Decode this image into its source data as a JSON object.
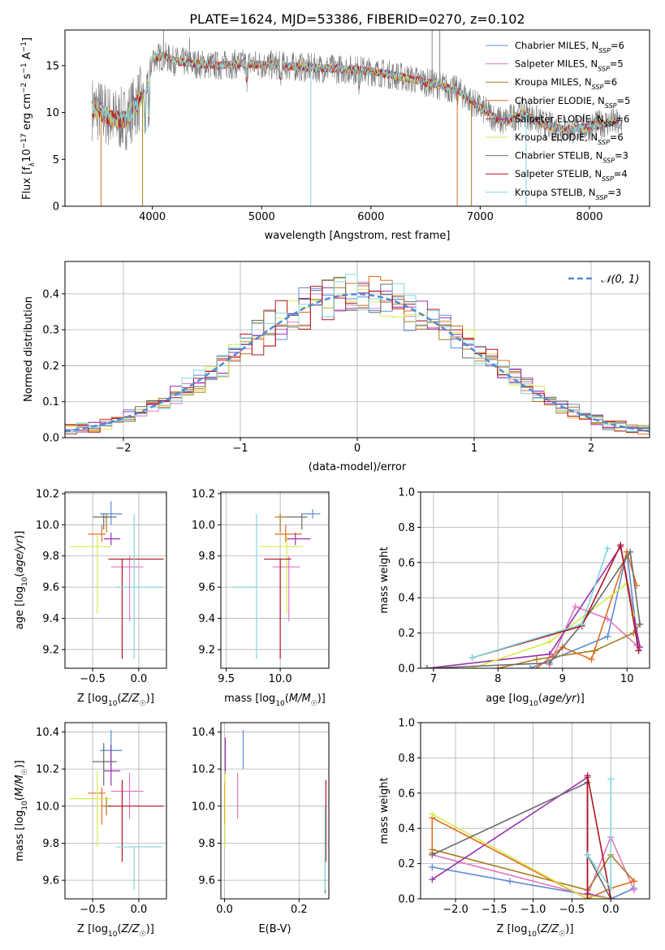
{
  "title": "PLATE=1624, MJD=53386, FIBERID=0270, z=0.102",
  "colors": {
    "Chabrier MILES": "#5b8bd9",
    "Salpeter MILES": "#e377c2",
    "Kroupa MILES": "#a87c1e",
    "Chabrier ELODIE": "#e36d1f",
    "Salpeter ELODIE": "#9b30b0",
    "Kroupa ELODIE": "#d7ea4a",
    "Chabrier STELIB": "#6b6b6b",
    "Salpeter STELIB": "#b0141f",
    "Kroupa STELIB": "#7fd7df",
    "normal": "#4f8ad6"
  },
  "chart_data": [
    {
      "id": "spectrum",
      "type": "line",
      "title": "PLATE=1624, MJD=53386, FIBERID=0270, z=0.102",
      "xlabel": "wavelength [Angstrom, rest frame]",
      "ylabel_parts": [
        "Flux [f",
        "λ",
        "10",
        "−17",
        " erg cm",
        "−2",
        " s",
        "−1",
        " A",
        "−1",
        "]"
      ],
      "xlim": [
        3200,
        8550
      ],
      "ylim": [
        0,
        18.8
      ],
      "xticks": [
        4000,
        5000,
        6000,
        7000,
        8000
      ],
      "yticks": [
        0,
        5,
        10,
        15
      ],
      "grid": false,
      "legend_position": "upper right",
      "legend": [
        {
          "label": "Chabrier MILES, N",
          "sub": "SSP",
          "suffix": "=6",
          "color": "#5b8bd9"
        },
        {
          "label": "Salpeter MILES, N",
          "sub": "SSP",
          "suffix": "=5",
          "color": "#e377c2"
        },
        {
          "label": "Kroupa MILES, N",
          "sub": "SSP",
          "suffix": "=6",
          "color": "#a87c1e"
        },
        {
          "label": "Chabrier ELODIE, N",
          "sub": "SSP",
          "suffix": "=5",
          "color": "#e36d1f"
        },
        {
          "label": "Salpeter ELODIE, N",
          "sub": "SSP",
          "suffix": "=6",
          "color": "#9b30b0"
        },
        {
          "label": "Kroupa ELODIE, N",
          "sub": "SSP",
          "suffix": "=6",
          "color": "#d7ea4a"
        },
        {
          "label": "Chabrier STELIB, N",
          "sub": "SSP",
          "suffix": "=3",
          "color": "#6b6b6b"
        },
        {
          "label": "Salpeter STELIB, N",
          "sub": "SSP",
          "suffix": "=4",
          "color": "#b0141f"
        },
        {
          "label": "Kroupa STELIB, N",
          "sub": "SSP",
          "suffix": "=3",
          "color": "#7fd7df"
        }
      ],
      "continuum": {
        "x": [
          3450,
          3550,
          3650,
          3750,
          3850,
          3950,
          4000,
          4100,
          4200,
          4400,
          4600,
          4800,
          5000,
          5200,
          5400,
          5600,
          5800,
          6000,
          6200,
          6400,
          6600,
          6800,
          7000,
          7200,
          7400,
          7600,
          7800,
          8000,
          8200,
          8300
        ],
        "y": [
          10.5,
          10.0,
          9.2,
          9.3,
          10.8,
          12.5,
          15.8,
          16.0,
          15.5,
          15.2,
          15.0,
          15.2,
          15.1,
          15.0,
          14.8,
          14.7,
          14.6,
          14.4,
          14.0,
          13.5,
          13.0,
          12.3,
          10.5,
          9.0,
          10.0,
          8.6,
          8.1,
          8.5,
          9.0,
          8.6
        ]
      },
      "spikes": [
        {
          "x": 3530,
          "y": 0
        },
        {
          "x": 3910,
          "y": 0
        },
        {
          "x": 5450,
          "y": 0
        },
        {
          "x": 6790,
          "y": 0
        },
        {
          "x": 6920,
          "y": 0
        },
        {
          "x": 7420,
          "y": 0
        },
        {
          "x": 6560,
          "y": 21
        },
        {
          "x": 6630,
          "y": 19
        },
        {
          "x": 4102,
          "y": 19
        },
        {
          "x": 4340,
          "y": 18
        }
      ]
    },
    {
      "id": "residuals",
      "type": "histogram",
      "xlabel": "(data-model)/error",
      "ylabel": "Normed distribution",
      "xlim": [
        -2.5,
        2.5
      ],
      "ylim": [
        0,
        0.49
      ],
      "xticks": [
        -2,
        -1,
        0,
        1,
        2
      ],
      "yticks": [
        0.0,
        0.1,
        0.2,
        0.3,
        0.4
      ],
      "grid": true,
      "legend_position": "upper right",
      "legend": [
        {
          "label": "𝒩(0, 1)",
          "color": "#4f8ad6"
        }
      ],
      "bin_width": 0.1
    },
    {
      "id": "age-z",
      "type": "errorbar",
      "xlabel": "Z [log₁₀(Z/Z☉)]",
      "ylabel": "age  [log₁₀(age/yr)]",
      "xlim": [
        -0.8,
        0.3
      ],
      "ylim": [
        9.08,
        10.21
      ],
      "xticks": [
        -0.5,
        0.0
      ],
      "yticks": [
        9.2,
        9.4,
        9.6,
        9.8,
        10.0,
        10.2
      ],
      "grid": true,
      "points": [
        {
          "model": "Chabrier MILES",
          "x": -0.3,
          "xerr": [
            0.12,
            0.12
          ],
          "y": 10.07,
          "yerr": [
            0.07,
            0.08
          ]
        },
        {
          "model": "Salpeter MILES",
          "x": -0.1,
          "xerr": [
            0.2,
            0.15
          ],
          "y": 9.73,
          "yerr": [
            0.35,
            0.07
          ]
        },
        {
          "model": "Kroupa MILES",
          "x": -0.35,
          "xerr": [
            0.05,
            0.05
          ],
          "y": 10.05,
          "yerr": [
            0.1,
            0.02
          ]
        },
        {
          "model": "Chabrier ELODIE",
          "x": -0.4,
          "xerr": [
            0.15,
            0.04
          ],
          "y": 9.94,
          "yerr": [
            0.05,
            0.06
          ]
        },
        {
          "model": "Salpeter ELODIE",
          "x": -0.3,
          "xerr": [
            0.08,
            0.1
          ],
          "y": 9.91,
          "yerr": [
            0.04,
            0.04
          ]
        },
        {
          "model": "Kroupa ELODIE",
          "x": -0.45,
          "xerr": [
            0.3,
            0.15
          ],
          "y": 9.86,
          "yerr": [
            0.43,
            0.07
          ]
        },
        {
          "model": "Chabrier STELIB",
          "x": -0.38,
          "xerr": [
            0.12,
            0.14
          ],
          "y": 10.05,
          "yerr": [
            0.08,
            0.02
          ]
        },
        {
          "model": "Salpeter STELIB",
          "x": -0.18,
          "xerr": [
            0.15,
            0.45
          ],
          "y": 9.78,
          "yerr": [
            0.64,
            0.0
          ]
        },
        {
          "model": "Kroupa STELIB",
          "x": -0.05,
          "xerr": [
            0.2,
            0.3
          ],
          "y": 9.6,
          "yerr": [
            0.46,
            0.47
          ]
        }
      ]
    },
    {
      "id": "age-mass",
      "type": "errorbar",
      "xlabel": "mass [log₁₀(M/M☉)]",
      "ylabel": "",
      "xlim": [
        9.45,
        10.45
      ],
      "ylim": [
        9.08,
        10.21
      ],
      "xticks": [
        9.5,
        10.0
      ],
      "yticks": [
        9.2,
        9.4,
        9.6,
        9.8,
        10.0,
        10.2
      ],
      "grid": true,
      "points": [
        {
          "model": "Chabrier MILES",
          "x": 10.3,
          "xerr": [
            0.1,
            0.07
          ],
          "y": 10.07,
          "yerr": [
            0.03,
            0.03
          ]
        },
        {
          "model": "Salpeter MILES",
          "x": 10.08,
          "xerr": [
            0.15,
            0.1
          ],
          "y": 9.73,
          "yerr": [
            0.35,
            0.07
          ]
        },
        {
          "model": "Kroupa MILES",
          "x": 10.0,
          "xerr": [
            0.05,
            0.05
          ],
          "y": 10.05,
          "yerr": [
            0.1,
            0.02
          ]
        },
        {
          "model": "Chabrier ELODIE",
          "x": 10.05,
          "xerr": [
            0.1,
            0.15
          ],
          "y": 9.94,
          "yerr": [
            0.05,
            0.06
          ]
        },
        {
          "model": "Salpeter ELODIE",
          "x": 10.14,
          "xerr": [
            0.08,
            0.14
          ],
          "y": 9.91,
          "yerr": [
            0.04,
            0.04
          ]
        },
        {
          "model": "Kroupa ELODIE",
          "x": 10.06,
          "xerr": [
            0.25,
            0.15
          ],
          "y": 9.86,
          "yerr": [
            0.43,
            0.07
          ]
        },
        {
          "model": "Chabrier STELIB",
          "x": 10.2,
          "xerr": [
            0.15,
            0.05
          ],
          "y": 10.05,
          "yerr": [
            0.08,
            0.02
          ]
        },
        {
          "model": "Salpeter STELIB",
          "x": 10.0,
          "xerr": [
            0.15,
            0.1
          ],
          "y": 9.78,
          "yerr": [
            0.64,
            0.0
          ]
        },
        {
          "model": "Kroupa STELIB",
          "x": 9.78,
          "xerr": [
            0.23,
            0.0
          ],
          "y": 9.6,
          "yerr": [
            0.46,
            0.47
          ]
        }
      ]
    },
    {
      "id": "massweight-age",
      "type": "line",
      "xlabel": "age  [log₁₀(age/yr)]",
      "ylabel": "mass weight",
      "xlim": [
        6.8,
        10.35
      ],
      "ylim": [
        0,
        1.0
      ],
      "xticks": [
        7,
        8,
        9,
        10
      ],
      "yticks": [
        0.0,
        0.2,
        0.4,
        0.6,
        0.8,
        1.0
      ],
      "grid": true,
      "series": [
        {
          "name": "Chabrier MILES",
          "x": [
            8.5,
            9.7,
            10.0,
            10.18
          ],
          "y": [
            0.0,
            0.18,
            0.66,
            0.1
          ]
        },
        {
          "name": "Salpeter MILES",
          "x": [
            8.8,
            9.2,
            9.7,
            10.15
          ],
          "y": [
            0.02,
            0.35,
            0.28,
            0.13
          ]
        },
        {
          "name": "Kroupa MILES",
          "x": [
            8.0,
            8.6,
            9.5,
            10.1,
            10.2
          ],
          "y": [
            0.0,
            0.05,
            0.1,
            0.2,
            0.25
          ]
        },
        {
          "name": "Chabrier ELODIE",
          "x": [
            8.6,
            9.0,
            9.45,
            10.0,
            10.15
          ],
          "y": [
            0.0,
            0.12,
            0.05,
            0.66,
            0.47
          ]
        },
        {
          "name": "Salpeter ELODIE",
          "x": [
            6.9,
            8.8,
            9.9,
            10.2
          ],
          "y": [
            0.0,
            0.08,
            0.69,
            0.12
          ]
        },
        {
          "name": "Kroupa ELODIE",
          "x": [
            7.6,
            8.8,
            10.0,
            10.1
          ],
          "y": [
            0.0,
            0.15,
            0.48,
            0.3
          ]
        },
        {
          "name": "Chabrier STELIB",
          "x": [
            6.9,
            8.8,
            9.3,
            10.05,
            10.2
          ],
          "y": [
            0.0,
            0.03,
            0.25,
            0.66,
            0.25
          ]
        },
        {
          "name": "Salpeter STELIB",
          "x": [
            7.6,
            9.3,
            9.9,
            10.18
          ],
          "y": [
            0.06,
            0.24,
            0.7,
            0.1
          ]
        },
        {
          "name": "Kroupa STELIB",
          "x": [
            7.6,
            9.3,
            9.7
          ],
          "y": [
            0.06,
            0.25,
            0.68
          ]
        }
      ]
    },
    {
      "id": "mass-z",
      "type": "errorbar",
      "xlabel": "Z [log₁₀(Z/Z☉)]",
      "ylabel": "mass [log₁₀(M/M☉)]",
      "xlim": [
        -0.8,
        0.3
      ],
      "ylim": [
        9.5,
        10.45
      ],
      "xticks": [
        -0.5,
        0.0
      ],
      "yticks": [
        9.6,
        9.8,
        10.0,
        10.2,
        10.4
      ],
      "grid": true,
      "points": [
        {
          "model": "Chabrier MILES",
          "x": -0.3,
          "xerr": [
            0.12,
            0.12
          ],
          "y": 10.3,
          "yerr": [
            0.1,
            0.11
          ]
        },
        {
          "model": "Salpeter MILES",
          "x": -0.1,
          "xerr": [
            0.2,
            0.15
          ],
          "y": 10.08,
          "yerr": [
            0.15,
            0.1
          ]
        },
        {
          "model": "Kroupa MILES",
          "x": -0.35,
          "xerr": [
            0.05,
            0.05
          ],
          "y": 10.0,
          "yerr": [
            0.05,
            0.05
          ]
        },
        {
          "model": "Chabrier ELODIE",
          "x": -0.4,
          "xerr": [
            0.15,
            0.04
          ],
          "y": 10.07,
          "yerr": [
            0.17,
            0.03
          ]
        },
        {
          "model": "Salpeter ELODIE",
          "x": -0.3,
          "xerr": [
            0.08,
            0.1
          ],
          "y": 10.19,
          "yerr": [
            0.08,
            0.14
          ]
        },
        {
          "model": "Kroupa ELODIE",
          "x": -0.45,
          "xerr": [
            0.3,
            0.15
          ],
          "y": 10.04,
          "yerr": [
            0.26,
            0.15
          ]
        },
        {
          "model": "Chabrier STELIB",
          "x": -0.38,
          "xerr": [
            0.12,
            0.14
          ],
          "y": 10.24,
          "yerr": [
            0.13,
            0.1
          ]
        },
        {
          "model": "Salpeter STELIB",
          "x": -0.18,
          "xerr": [
            0.15,
            0.45
          ],
          "y": 10.0,
          "yerr": [
            0.3,
            0.14
          ]
        },
        {
          "model": "Kroupa STELIB",
          "x": -0.05,
          "xerr": [
            0.2,
            0.3
          ],
          "y": 9.78,
          "yerr": [
            0.23,
            0.0
          ]
        }
      ]
    },
    {
      "id": "mass-ebv",
      "type": "errorbar",
      "xlabel": "E(B-V)",
      "ylabel": "",
      "xlim": [
        -0.01,
        0.28
      ],
      "ylim": [
        9.5,
        10.45
      ],
      "xticks": [
        0.0,
        0.2
      ],
      "yticks": [
        9.6,
        9.8,
        10.0,
        10.2,
        10.4
      ],
      "grid": true,
      "points": [
        {
          "model": "Chabrier MILES",
          "x": 0.05,
          "y": 10.3,
          "yerr": [
            0.1,
            0.11
          ]
        },
        {
          "model": "Salpeter MILES",
          "x": 0.035,
          "y": 10.08,
          "yerr": [
            0.15,
            0.1
          ]
        },
        {
          "model": "Kroupa MILES",
          "x": 0.0,
          "y": 10.05,
          "yerr": [
            0.1,
            0.05
          ]
        },
        {
          "model": "Chabrier ELODIE",
          "x": 0.0,
          "y": 10.1,
          "yerr": [
            0.2,
            0.03
          ]
        },
        {
          "model": "Salpeter ELODIE",
          "x": 0.002,
          "y": 10.25,
          "yerr": [
            0.08,
            0.12
          ]
        },
        {
          "model": "Kroupa ELODIE",
          "x": 0.001,
          "y": 10.04,
          "yerr": [
            0.26,
            0.15
          ]
        },
        {
          "model": "Chabrier STELIB",
          "x": 0.27,
          "y": 9.78,
          "yerr": [
            0.25,
            0.22
          ]
        },
        {
          "model": "Salpeter STELIB",
          "x": 0.272,
          "y": 10.0,
          "yerr": [
            0.3,
            0.14
          ]
        },
        {
          "model": "Kroupa STELIB",
          "x": 0.27,
          "y": 9.78,
          "yerr": [
            0.23,
            0.22
          ]
        }
      ]
    },
    {
      "id": "massweight-z",
      "type": "line",
      "xlabel": "Z [log₁₀(Z/Z☉)]",
      "ylabel": "mass weight",
      "xlim": [
        -2.45,
        0.5
      ],
      "ylim": [
        0,
        1.0
      ],
      "xticks": [
        -2.0,
        -1.5,
        -1.0,
        -0.5,
        0.0
      ],
      "yticks": [
        0.0,
        0.2,
        0.4,
        0.6,
        0.8,
        1.0
      ],
      "grid": true,
      "series": [
        {
          "name": "Chabrier MILES",
          "x": [
            -2.3,
            -1.3,
            0.0,
            0.3
          ],
          "y": [
            0.18,
            0.1,
            0.0,
            0.06
          ]
        },
        {
          "name": "Salpeter MILES",
          "x": [
            -2.3,
            -0.3,
            0.0,
            0.3
          ],
          "y": [
            0.25,
            0.02,
            0.35,
            0.05
          ]
        },
        {
          "name": "Kroupa MILES",
          "x": [
            -2.3,
            -0.3,
            0.0,
            0.3
          ],
          "y": [
            0.28,
            0.05,
            0.25,
            0.1
          ]
        },
        {
          "name": "Chabrier ELODIE",
          "x": [
            -2.3,
            -2.3,
            -0.3,
            0.0,
            0.3
          ],
          "y": [
            0.26,
            0.46,
            0.0,
            0.06,
            0.1
          ]
        },
        {
          "name": "Salpeter ELODIE",
          "x": [
            -2.3,
            -0.3,
            -0.3,
            0.0
          ],
          "y": [
            0.11,
            0.69,
            0.03,
            0.0
          ]
        },
        {
          "name": "Kroupa ELODIE",
          "x": [
            -2.3,
            -0.3,
            -0.3,
            0.0
          ],
          "y": [
            0.48,
            0.0,
            0.02,
            0.0
          ]
        },
        {
          "name": "Chabrier STELIB",
          "x": [
            -2.3,
            -0.3,
            -0.3,
            0.0
          ],
          "y": [
            0.25,
            0.66,
            0.25,
            0.0
          ]
        },
        {
          "name": "Salpeter STELIB",
          "x": [
            -0.3,
            -0.3,
            0.0
          ],
          "y": [
            0.0,
            0.7,
            0.0
          ]
        },
        {
          "name": "Kroupa STELIB",
          "x": [
            -0.3,
            0.0,
            0.0
          ],
          "y": [
            0.25,
            0.06,
            0.68
          ]
        }
      ]
    }
  ]
}
